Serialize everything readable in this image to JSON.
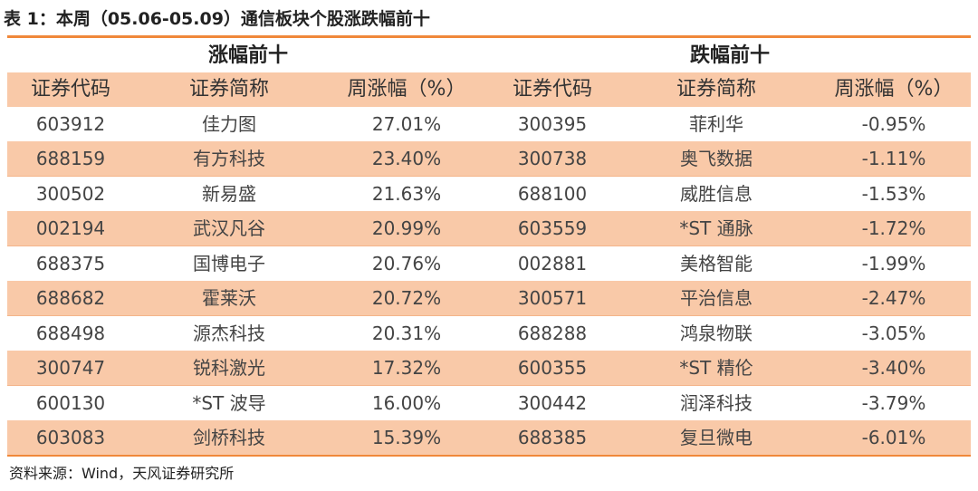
{
  "caption": "表 1：本周（05.06-05.09）通信板块个股涨跌幅前十",
  "groups": {
    "gainers": "涨幅前十",
    "losers": "跌幅前十"
  },
  "columns": [
    "证券代码",
    "证券简称",
    "周涨幅（%）",
    "证券代码",
    "证券简称",
    "周涨幅（%）"
  ],
  "rows": [
    [
      "603912",
      "佳力图",
      "27.01%",
      "300395",
      "菲利华",
      "-0.95%"
    ],
    [
      "688159",
      "有方科技",
      "23.40%",
      "300738",
      "奥飞数据",
      "-1.11%"
    ],
    [
      "300502",
      "新易盛",
      "21.63%",
      "688100",
      "威胜信息",
      "-1.53%"
    ],
    [
      "002194",
      "武汉凡谷",
      "20.99%",
      "603559",
      "*ST 通脉",
      "-1.72%"
    ],
    [
      "688375",
      "国博电子",
      "20.76%",
      "002881",
      "美格智能",
      "-1.99%"
    ],
    [
      "688682",
      "霍莱沃",
      "20.72%",
      "300571",
      "平治信息",
      "-2.47%"
    ],
    [
      "688498",
      "源杰科技",
      "20.31%",
      "688288",
      "鸿泉物联",
      "-3.05%"
    ],
    [
      "300747",
      "锐科激光",
      "17.32%",
      "600355",
      "*ST 精伦",
      "-3.40%"
    ],
    [
      "600130",
      "*ST 波导",
      "16.00%",
      "300442",
      "润泽科技",
      "-3.79%"
    ],
    [
      "603083",
      "剑桥科技",
      "15.39%",
      "688385",
      "复旦微电",
      "-6.01%"
    ]
  ],
  "source": "资料来源：Wind，天风证券研究所",
  "colors": {
    "accent_line": "#f0883a",
    "shade": "#f9c9a8"
  }
}
